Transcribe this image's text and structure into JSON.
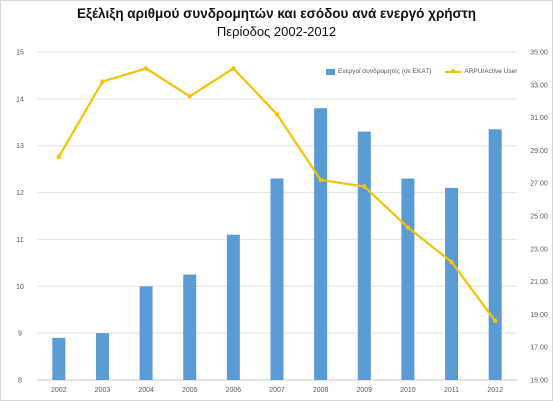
{
  "chart_data": {
    "type": "bar",
    "title": "Εξέλιξη αριθμού συνδρομητών και εσόδου ανά ενεργό χρήστη",
    "subtitle": "Περίοδος 2002-2012",
    "categories": [
      "2002",
      "2003",
      "2004",
      "2005",
      "2006",
      "2007",
      "2008",
      "2009",
      "2010",
      "2011",
      "2012"
    ],
    "series": [
      {
        "name": "Ενεργοί συνδρομητές (σε ΕΚΑΤ)",
        "type": "bar",
        "axis": "left",
        "color": "#5b9bd5",
        "values": [
          8.9,
          9.0,
          10.0,
          10.25,
          11.1,
          12.3,
          13.8,
          13.3,
          12.3,
          12.1,
          13.35
        ]
      },
      {
        "name": "ARPU/Active User",
        "type": "line",
        "axis": "right",
        "color": "#f2c400",
        "values": [
          28.6,
          33.2,
          34.0,
          32.3,
          34.0,
          31.2,
          27.2,
          26.8,
          24.3,
          22.2,
          18.6
        ]
      }
    ],
    "y_left": {
      "min": 8,
      "max": 15,
      "ticks": [
        "8",
        "9",
        "10",
        "11",
        "12",
        "13",
        "14",
        "15"
      ]
    },
    "y_right": {
      "min": 15,
      "max": 35,
      "ticks": [
        "15.00",
        "17.00",
        "19.00",
        "21.00",
        "23.00",
        "25.00",
        "27.00",
        "29.00",
        "31.00",
        "33.00",
        "35.00"
      ]
    },
    "grid": true,
    "legend": "top-right"
  }
}
